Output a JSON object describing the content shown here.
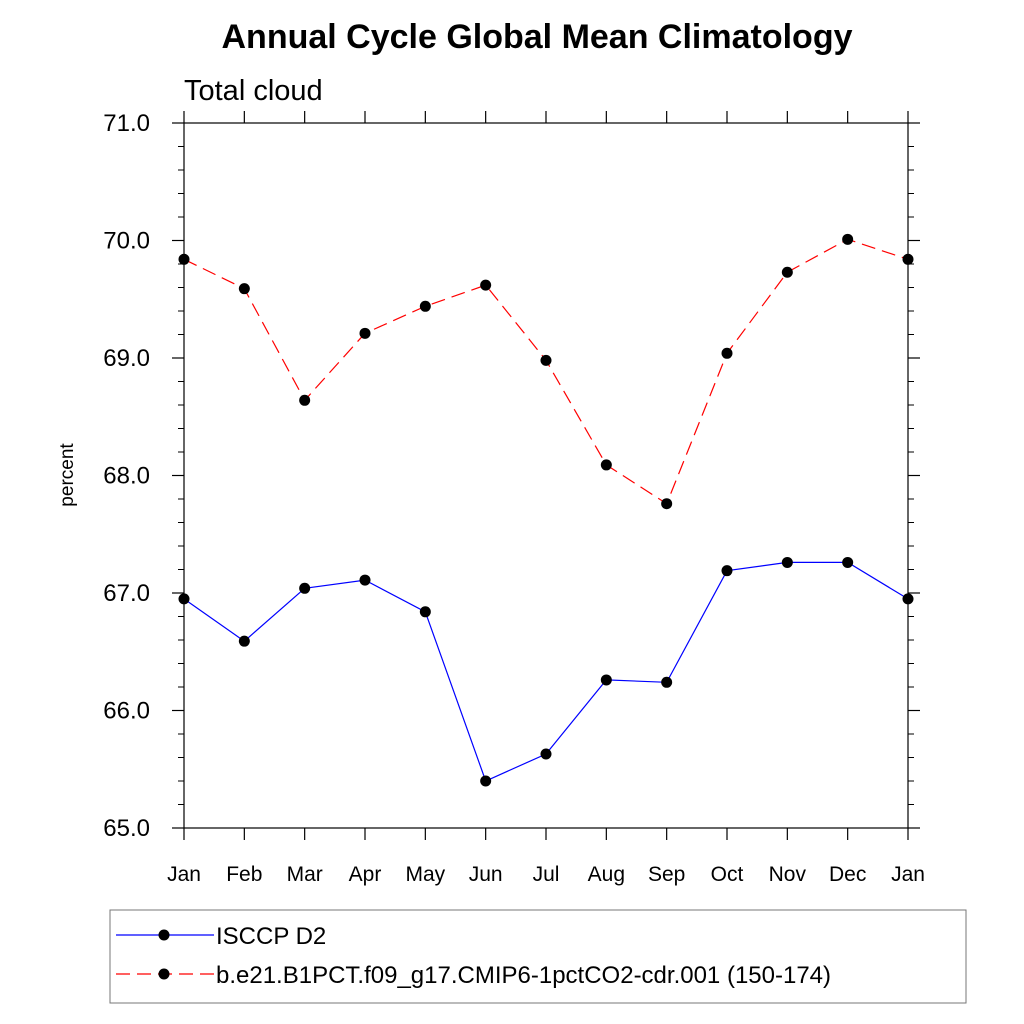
{
  "chart_data": {
    "type": "line",
    "title": "Annual Cycle Global Mean Climatology",
    "subtitle": "Total cloud",
    "ylabel": "percent",
    "xlabel": "",
    "ylim": [
      65.0,
      71.0
    ],
    "yticks": [
      "65.0",
      "66.0",
      "67.0",
      "68.0",
      "69.0",
      "70.0",
      "71.0"
    ],
    "categories": [
      "Jan",
      "Feb",
      "Mar",
      "Apr",
      "May",
      "Jun",
      "Jul",
      "Aug",
      "Sep",
      "Oct",
      "Nov",
      "Dec",
      "Jan"
    ],
    "grid": false,
    "legend_position": "bottom",
    "series": [
      {
        "name": "ISCCP D2",
        "color": "#0000ff",
        "dash": "solid",
        "marker": "filled-circle",
        "values": [
          66.95,
          66.59,
          67.04,
          67.11,
          66.84,
          65.4,
          65.63,
          66.26,
          66.24,
          67.19,
          67.26,
          67.26,
          66.95
        ]
      },
      {
        "name": "b.e21.B1PCT.f09_g17.CMIP6-1pctCO2-cdr.001 (150-174)",
        "color": "#ff0000",
        "dash": "dashed",
        "marker": "filled-circle",
        "values": [
          69.84,
          69.59,
          68.64,
          69.21,
          69.44,
          69.62,
          68.98,
          68.09,
          67.76,
          69.04,
          69.73,
          70.01,
          69.84
        ]
      }
    ]
  }
}
